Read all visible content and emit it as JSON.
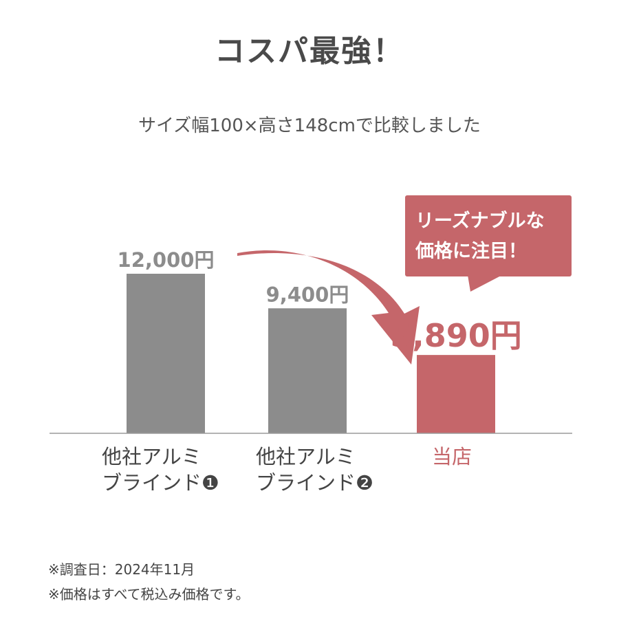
{
  "title": "コスパ最強！",
  "subtitle": "サイズ幅100×高さ148cmで比較しました",
  "callout": {
    "line1": "リーズナブルな",
    "line2": "価格に注目！"
  },
  "notes": [
    "※調査日：2024年11月",
    "※価格はすべて税込み価格です。"
  ],
  "colors": {
    "competitor_bar": "#8c8c8c",
    "our_bar": "#c5666a",
    "axis": "#9a9a9a",
    "text": "#4a4a4a"
  },
  "chart_data": {
    "type": "bar",
    "title": "",
    "xlabel": "",
    "ylabel": "",
    "ylim": [
      0,
      12000
    ],
    "grid": false,
    "categories": [
      {
        "line1": "他社アルミ",
        "line2": "ブラインド❶",
        "highlight": false
      },
      {
        "line1": "他社アルミ",
        "line2": "ブラインド❷",
        "highlight": false
      },
      {
        "line1": "当店",
        "line2": "",
        "highlight": true
      }
    ],
    "values": [
      12000,
      9400,
      5890
    ],
    "value_labels": [
      "12,000円",
      "9,400円",
      "5,890円"
    ]
  }
}
